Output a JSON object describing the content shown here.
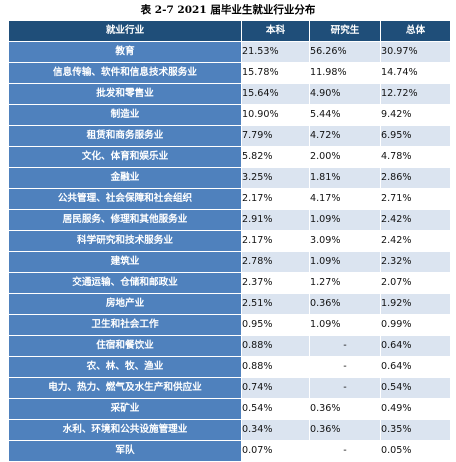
{
  "caption": "表 2-7 2021 届毕业生就业行业分布",
  "headers": [
    "就业行业",
    "本科",
    "研究生",
    "总体"
  ],
  "rows": [
    {
      "industry": "教育",
      "bachelor": "21.53%",
      "graduate": "56.26%",
      "overall": "30.97%"
    },
    {
      "industry": "信息传输、软件和信息技术服务业",
      "bachelor": "15.78%",
      "graduate": "11.98%",
      "overall": "14.74%"
    },
    {
      "industry": "批发和零售业",
      "bachelor": "15.64%",
      "graduate": "4.90%",
      "overall": "12.72%"
    },
    {
      "industry": "制造业",
      "bachelor": "10.90%",
      "graduate": "5.44%",
      "overall": "9.42%"
    },
    {
      "industry": "租赁和商务服务业",
      "bachelor": "7.79%",
      "graduate": "4.72%",
      "overall": "6.95%"
    },
    {
      "industry": "文化、体育和娱乐业",
      "bachelor": "5.82%",
      "graduate": "2.00%",
      "overall": "4.78%"
    },
    {
      "industry": "金融业",
      "bachelor": "3.25%",
      "graduate": "1.81%",
      "overall": "2.86%"
    },
    {
      "industry": "公共管理、社会保障和社会组织",
      "bachelor": "2.17%",
      "graduate": "4.17%",
      "overall": "2.71%"
    },
    {
      "industry": "居民服务、修理和其他服务业",
      "bachelor": "2.91%",
      "graduate": "1.09%",
      "overall": "2.42%"
    },
    {
      "industry": "科学研究和技术服务业",
      "bachelor": "2.17%",
      "graduate": "3.09%",
      "overall": "2.42%"
    },
    {
      "industry": "建筑业",
      "bachelor": "2.78%",
      "graduate": "1.09%",
      "overall": "2.32%"
    },
    {
      "industry": "交通运输、仓储和邮政业",
      "bachelor": "2.37%",
      "graduate": "1.27%",
      "overall": "2.07%"
    },
    {
      "industry": "房地产业",
      "bachelor": "2.51%",
      "graduate": "0.36%",
      "overall": "1.92%"
    },
    {
      "industry": "卫生和社会工作",
      "bachelor": "0.95%",
      "graduate": "1.09%",
      "overall": "0.99%"
    },
    {
      "industry": "住宿和餐饮业",
      "bachelor": "0.88%",
      "graduate": "-",
      "overall": "0.64%"
    },
    {
      "industry": "农、林、牧、渔业",
      "bachelor": "0.88%",
      "graduate": "-",
      "overall": "0.64%"
    },
    {
      "industry": "电力、热力、燃气及水生产和供应业",
      "bachelor": "0.74%",
      "graduate": "-",
      "overall": "0.54%"
    },
    {
      "industry": "采矿业",
      "bachelor": "0.54%",
      "graduate": "0.36%",
      "overall": "0.49%"
    },
    {
      "industry": "水利、环境和公共设施管理业",
      "bachelor": "0.34%",
      "graduate": "0.36%",
      "overall": "0.35%"
    },
    {
      "industry": "军队",
      "bachelor": "0.07%",
      "graduate": "-",
      "overall": "0.05%"
    }
  ]
}
